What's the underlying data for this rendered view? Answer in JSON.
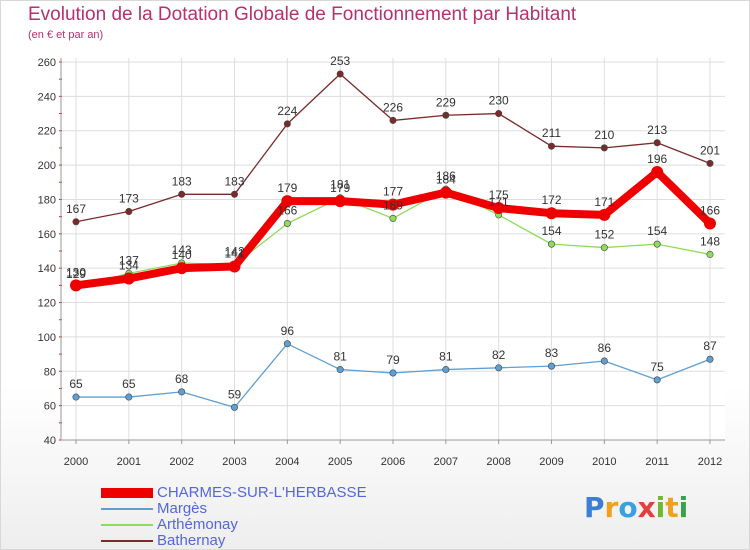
{
  "chart_data": {
    "type": "line",
    "title": "Evolution de la Dotation Globale de Fonctionnement par Habitant",
    "subtitle": "(en € et par an)",
    "x": [
      2000,
      2001,
      2002,
      2003,
      2004,
      2005,
      2006,
      2007,
      2008,
      2009,
      2010,
      2011,
      2012
    ],
    "ylim": [
      40,
      260
    ],
    "yticks": [
      40,
      60,
      80,
      100,
      120,
      140,
      160,
      180,
      200,
      220,
      240,
      260
    ],
    "grid": true,
    "legend_position": "bottom-left",
    "series": [
      {
        "name": "CHARMES-SUR-L'HERBASSE",
        "color": "#ee0000",
        "values": [
          130,
          134,
          140,
          141,
          179,
          179,
          177,
          184,
          175,
          172,
          171,
          196,
          166
        ]
      },
      {
        "name": "Margès",
        "color": "#5f9fd1",
        "values": [
          65,
          65,
          68,
          59,
          96,
          81,
          79,
          81,
          82,
          83,
          86,
          75,
          87
        ]
      },
      {
        "name": "Arthémonay",
        "color": "#8fdc5a",
        "values": [
          129,
          137,
          143,
          142,
          166,
          181,
          169,
          186,
          171,
          154,
          152,
          154,
          148
        ]
      },
      {
        "name": "Bathernay",
        "color": "#7a2a2a",
        "values": [
          167,
          173,
          183,
          183,
          224,
          253,
          226,
          229,
          230,
          211,
          210,
          213,
          201
        ]
      }
    ]
  },
  "logo": {
    "letters": [
      "P",
      "r",
      "o",
      "x",
      "i",
      "t",
      "i"
    ],
    "colors": [
      "#3a7fd5",
      "#f0a020",
      "#3aa0e0",
      "#e04040",
      "#70b830",
      "#f0a020",
      "#3a9f50"
    ]
  }
}
